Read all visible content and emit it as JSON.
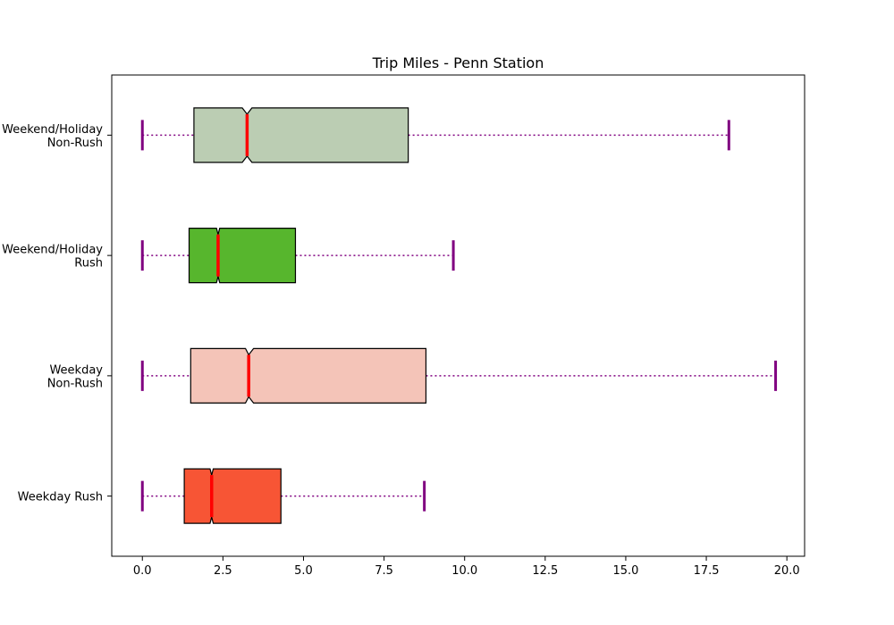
{
  "chart_data": {
    "type": "boxplot",
    "orientation": "horizontal",
    "notched": true,
    "title": "Trip Miles - Penn Station",
    "xlabel": "",
    "ylabel": "",
    "xlim": [
      -0.95,
      20.55
    ],
    "xticks": [
      0.0,
      2.5,
      5.0,
      7.5,
      10.0,
      12.5,
      15.0,
      17.5,
      20.0
    ],
    "xtick_labels": [
      "0.0",
      "2.5",
      "5.0",
      "7.5",
      "10.0",
      "12.5",
      "15.0",
      "17.5",
      "20.0"
    ],
    "grid": false,
    "whisker_color": "#800080",
    "median_color": "#ff0000",
    "box_edge_color": "#000000",
    "categories": [
      {
        "label_lines": [
          "Weekday Rush"
        ],
        "whislo": 0.0,
        "q1": 1.3,
        "med": 2.15,
        "q3": 4.3,
        "whishi": 8.75,
        "notch_lo": 2.1,
        "notch_hi": 2.2,
        "color": "#f75535"
      },
      {
        "label_lines": [
          "Weekday",
          "Non-Rush"
        ],
        "whislo": 0.0,
        "q1": 1.5,
        "med": 3.3,
        "q3": 8.8,
        "whishi": 19.65,
        "notch_lo": 3.2,
        "notch_hi": 3.45,
        "color": "#f4c4b8"
      },
      {
        "label_lines": [
          "Weekend/Holiday",
          "Rush"
        ],
        "whislo": 0.0,
        "q1": 1.45,
        "med": 2.35,
        "q3": 4.75,
        "whishi": 9.65,
        "notch_lo": 2.3,
        "notch_hi": 2.4,
        "color": "#57b62d"
      },
      {
        "label_lines": [
          "Weekend/Holiday",
          "Non-Rush"
        ],
        "whislo": 0.0,
        "q1": 1.6,
        "med": 3.25,
        "q3": 8.25,
        "whishi": 18.2,
        "notch_lo": 3.1,
        "notch_hi": 3.4,
        "color": "#bbcdb3"
      }
    ]
  }
}
